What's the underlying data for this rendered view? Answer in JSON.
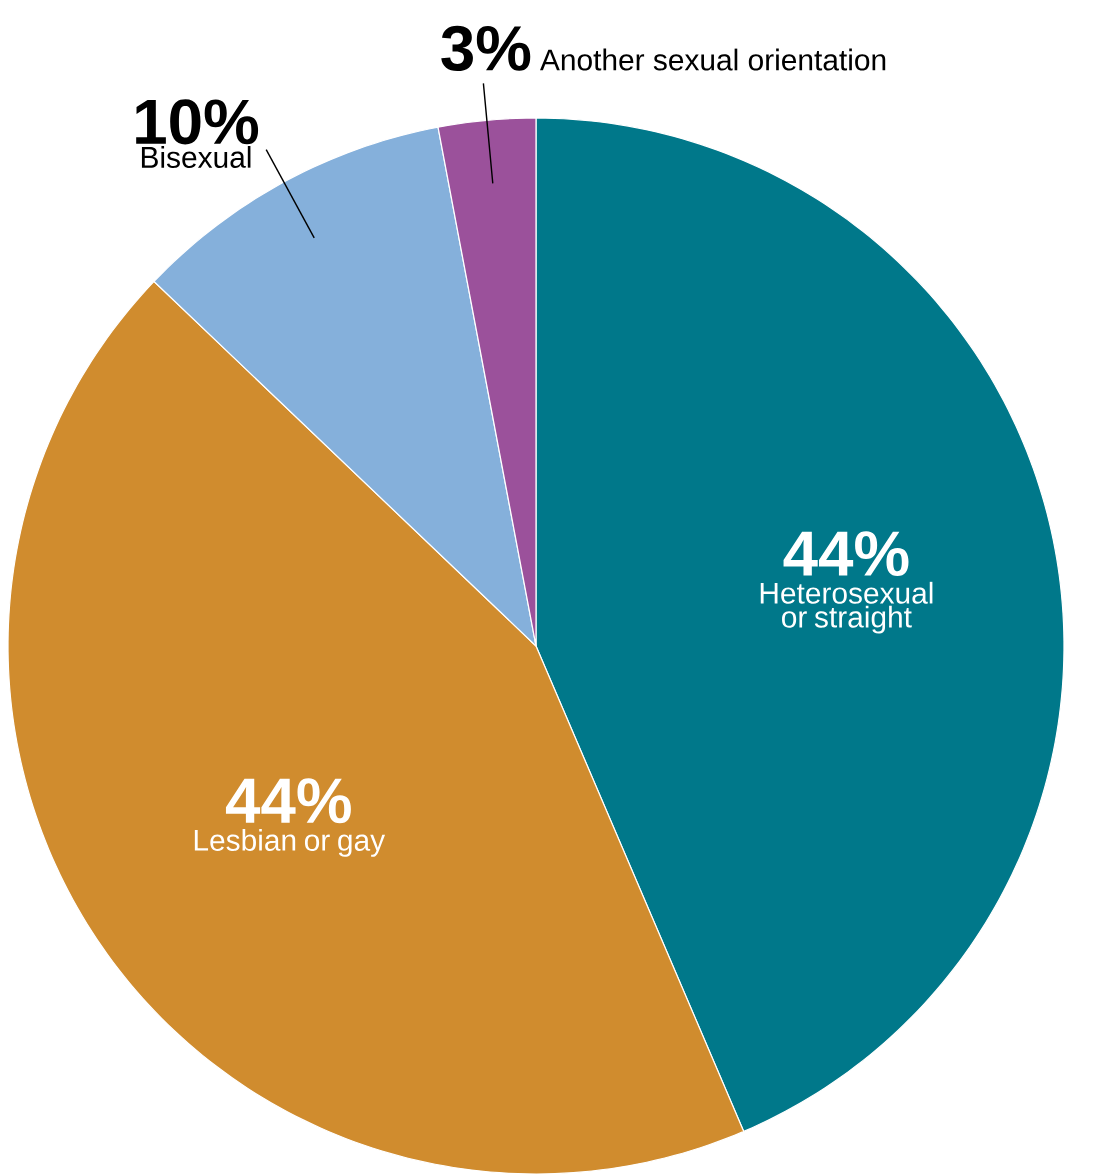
{
  "chart_data": {
    "type": "pie",
    "categories": [
      "Heterosexual or straight",
      "Lesbian or gay",
      "Bisexual",
      "Another sexual orientation"
    ],
    "values": [
      44,
      44,
      10,
      3
    ],
    "value_labels": [
      "44%",
      "44%",
      "10%",
      "3%"
    ],
    "colors": [
      "#00788a",
      "#d08c2e",
      "#85b0db",
      "#9b519b"
    ]
  }
}
